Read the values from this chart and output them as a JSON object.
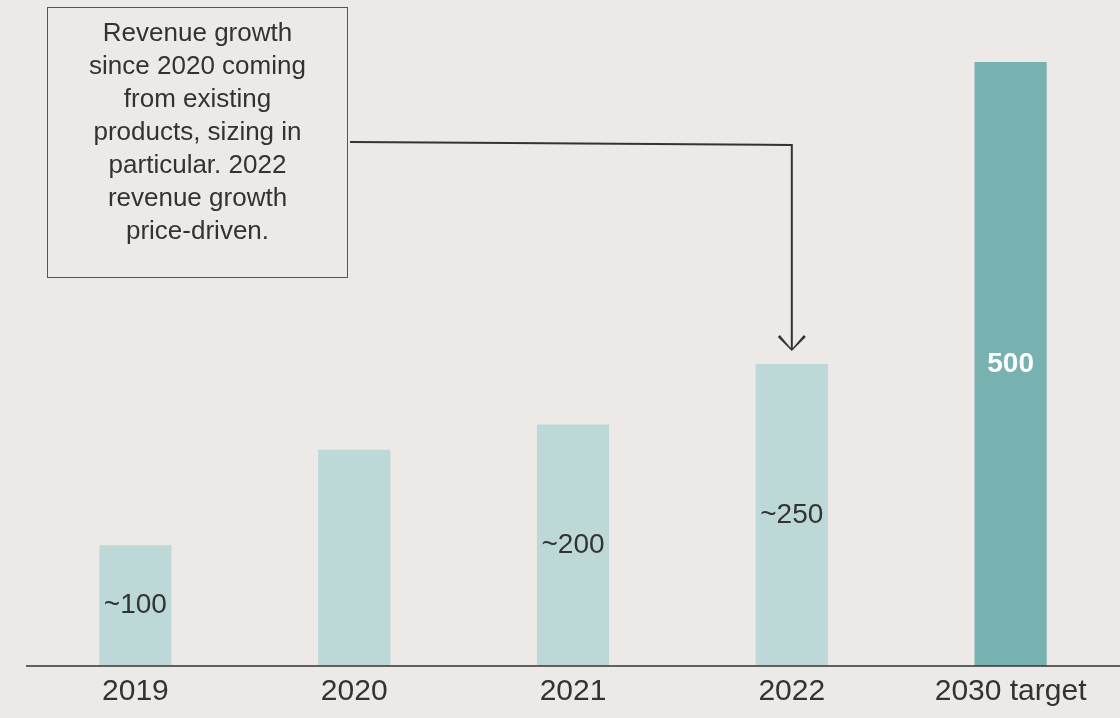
{
  "chart_data": {
    "type": "bar",
    "categories": [
      "2019",
      "2020",
      "2021",
      "2022",
      "2030 target"
    ],
    "values": [
      100,
      179,
      200,
      250,
      500
    ],
    "colors": [
      "#bcd9d8",
      "#bcd9d8",
      "#bcd9d8",
      "#bcd9d8",
      "#77b1b0"
    ],
    "value_labels": [
      "~100",
      null,
      "~200",
      "~250",
      "500"
    ],
    "annotations": [
      "Revenue growth since 2020 coming from existing products, sizing in particular. 2022 revenue growth price-driven."
    ],
    "grid": false,
    "legend": false
  }
}
